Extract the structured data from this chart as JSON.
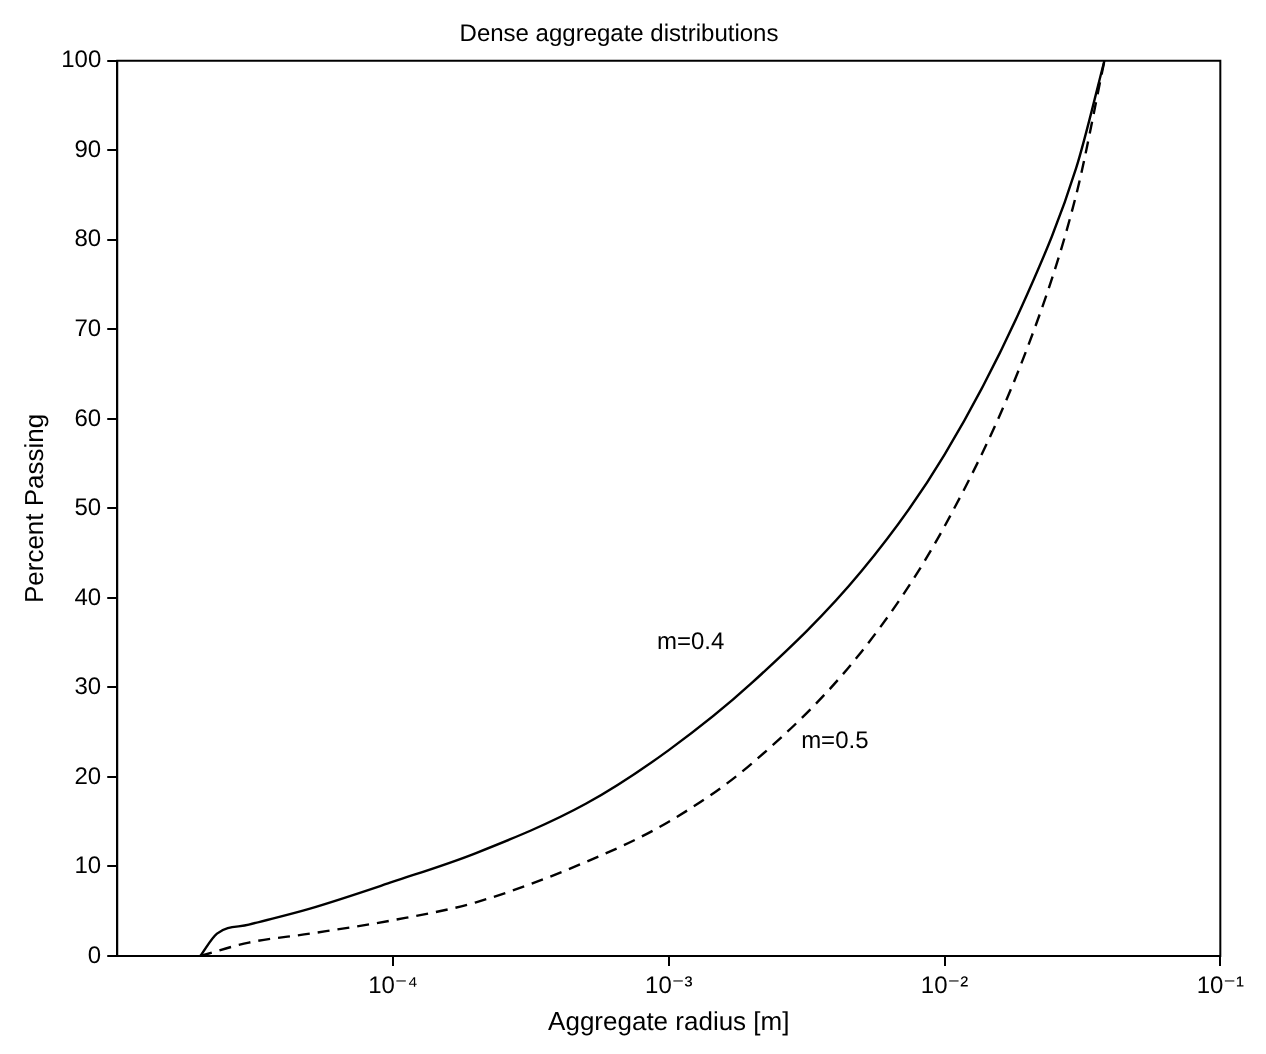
{
  "chart_data": {
    "type": "line",
    "title": "Dense aggregate distributions",
    "xlabel": "Aggregate radius [m]",
    "ylabel": "Percent Passing",
    "log": "x",
    "xlim": [
      1e-05,
      0.1
    ],
    "xticks": [
      {
        "value": 0.0001,
        "label": "10⁻⁴"
      },
      {
        "value": 0.001,
        "label": "10⁻³"
      },
      {
        "value": 0.01,
        "label": "10⁻²"
      },
      {
        "value": 0.1,
        "label": "10⁻¹"
      }
    ],
    "ylim": [
      0,
      100
    ],
    "yticks": [
      0,
      10,
      20,
      30,
      40,
      50,
      60,
      70,
      80,
      90,
      100
    ],
    "grid": false,
    "legend": false,
    "marker": "none",
    "series": [
      {
        "color": "#000000",
        "line_style": "solid",
        "x": [
          2e-05,
          2.3e-05,
          3e-05,
          5e-05,
          0.0001,
          0.0002,
          0.0005,
          0.001,
          0.002,
          0.005,
          0.01,
          0.02,
          0.03,
          0.038
        ],
        "values": [
          0,
          2.5,
          3.5,
          5.3,
          8.3,
          11.5,
          17,
          23,
          30.5,
          43,
          56,
          74,
          88,
          100
        ]
      },
      {
        "color": "#000000",
        "line_style": "dashed",
        "x": [
          2e-05,
          3e-05,
          5e-05,
          0.0001,
          0.0002,
          0.0005,
          0.001,
          0.002,
          0.005,
          0.01,
          0.02,
          0.03,
          0.038
        ],
        "values": [
          0,
          1.5,
          2.5,
          4,
          6,
          10.5,
          15,
          21.5,
          34,
          48,
          68,
          85,
          100
        ]
      }
    ],
    "annotations": [
      "m=0.4",
      "m=0.5"
    ]
  }
}
